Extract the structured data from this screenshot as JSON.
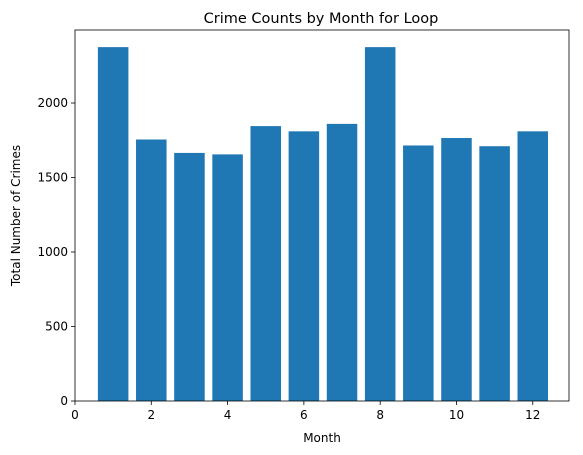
{
  "chart_data": {
    "type": "bar",
    "title": "Crime Counts by Month for Loop",
    "xlabel": "Month",
    "ylabel": "Total Number of Crimes",
    "x": [
      1,
      2,
      3,
      4,
      5,
      6,
      7,
      8,
      9,
      10,
      11,
      12
    ],
    "values": [
      2375,
      1755,
      1665,
      1655,
      1845,
      1810,
      1860,
      2375,
      1715,
      1765,
      1710,
      1810
    ],
    "xlim": [
      0,
      12.95
    ],
    "ylim": [
      0,
      2490
    ],
    "xticks": [
      0,
      2,
      4,
      6,
      8,
      10,
      12
    ],
    "yticks": [
      0,
      500,
      1000,
      1500,
      2000
    ],
    "bar_width": 0.8,
    "bar_color": "#1f77b4",
    "grid": false,
    "legend": "none"
  }
}
